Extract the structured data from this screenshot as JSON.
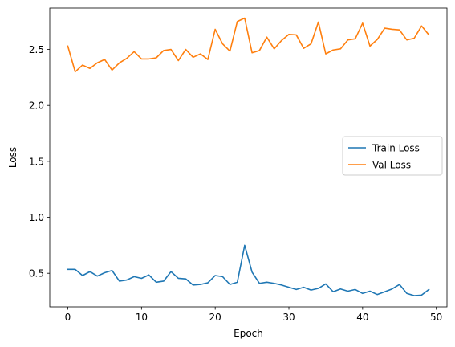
{
  "chart_data": {
    "type": "line",
    "title": "",
    "xlabel": "Epoch",
    "ylabel": "Loss",
    "xlim": [
      -2.45,
      51.45
    ],
    "ylim": [
      0.2,
      2.87
    ],
    "xticks": [
      0,
      10,
      20,
      30,
      40,
      50
    ],
    "yticks": [
      0.5,
      1.0,
      1.5,
      2.0,
      2.5
    ],
    "grid": false,
    "legend_position": "center-right",
    "x": [
      0,
      1,
      2,
      3,
      4,
      5,
      6,
      7,
      8,
      9,
      10,
      11,
      12,
      13,
      14,
      15,
      16,
      17,
      18,
      19,
      20,
      21,
      22,
      23,
      24,
      25,
      26,
      27,
      28,
      29,
      30,
      31,
      32,
      33,
      34,
      35,
      36,
      37,
      38,
      39,
      40,
      41,
      42,
      43,
      44,
      45,
      46,
      47,
      48,
      49
    ],
    "series": [
      {
        "name": "Train Loss",
        "color": "#1f77b4",
        "values": [
          0.535,
          0.535,
          0.48,
          0.515,
          0.475,
          0.505,
          0.525,
          0.43,
          0.44,
          0.47,
          0.455,
          0.485,
          0.42,
          0.43,
          0.515,
          0.455,
          0.45,
          0.395,
          0.4,
          0.415,
          0.48,
          0.47,
          0.4,
          0.42,
          0.75,
          0.51,
          0.41,
          0.42,
          0.41,
          0.395,
          0.375,
          0.355,
          0.375,
          0.35,
          0.365,
          0.405,
          0.335,
          0.36,
          0.34,
          0.355,
          0.32,
          0.34,
          0.31,
          0.335,
          0.36,
          0.4,
          0.32,
          0.3,
          0.305,
          0.355
        ]
      },
      {
        "name": "Val Loss",
        "color": "#ff7f0e",
        "values": [
          2.53,
          2.3,
          2.36,
          2.33,
          2.38,
          2.41,
          2.315,
          2.38,
          2.42,
          2.48,
          2.415,
          2.415,
          2.425,
          2.49,
          2.5,
          2.4,
          2.5,
          2.43,
          2.46,
          2.41,
          2.68,
          2.55,
          2.485,
          2.75,
          2.78,
          2.47,
          2.49,
          2.61,
          2.505,
          2.58,
          2.635,
          2.63,
          2.51,
          2.55,
          2.745,
          2.46,
          2.495,
          2.505,
          2.585,
          2.595,
          2.735,
          2.53,
          2.59,
          2.69,
          2.68,
          2.675,
          2.585,
          2.6,
          2.71,
          2.63
        ]
      }
    ]
  }
}
